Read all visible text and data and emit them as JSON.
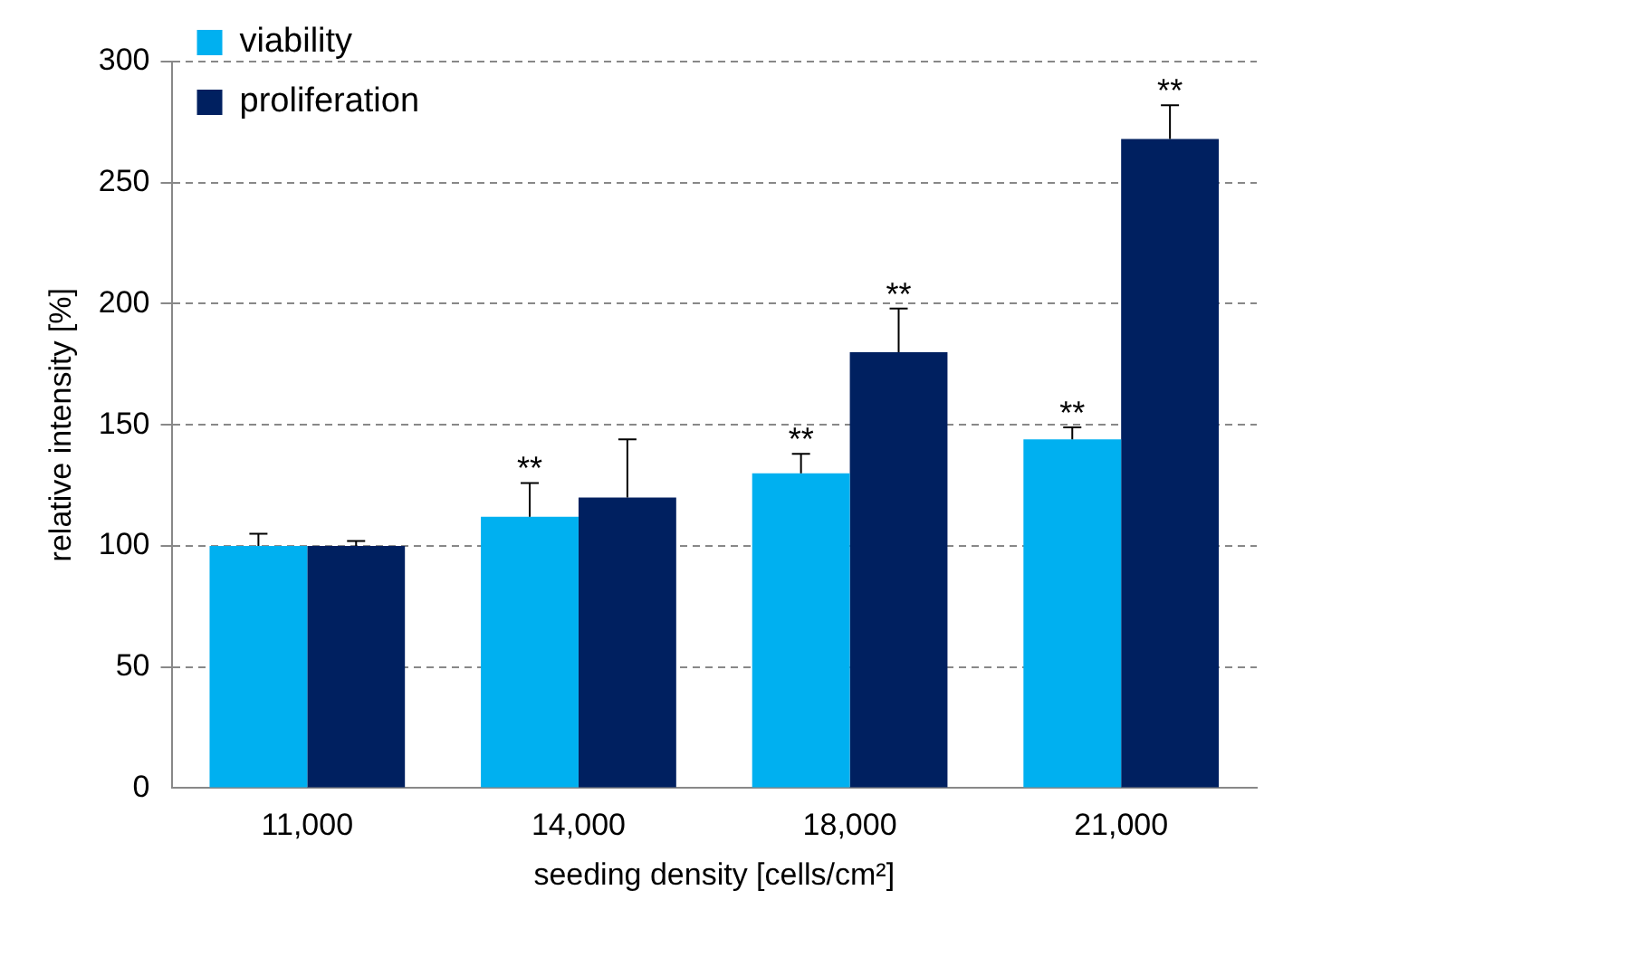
{
  "chart_data": {
    "type": "bar",
    "xlabel": "seeding density [cells/cm²]",
    "ylabel": "relative intensity [%]",
    "categories": [
      "11,000",
      "14,000",
      "18,000",
      "21,000"
    ],
    "series": [
      {
        "name": "viability",
        "color": "#00b0f0",
        "values": [
          100,
          112,
          130,
          144
        ],
        "errors": [
          5,
          14,
          8,
          5
        ]
      },
      {
        "name": "proliferation",
        "color": "#002060",
        "values": [
          100,
          120,
          180,
          268
        ],
        "errors": [
          2,
          24,
          18,
          14
        ]
      }
    ],
    "ylim": [
      0,
      300
    ],
    "yticks": [
      0,
      50,
      100,
      150,
      200,
      250,
      300
    ],
    "grid": "y",
    "legend": "top left",
    "annotations": [
      {
        "text": "**",
        "x": "14,000",
        "y": 112
      },
      {
        "text": "**",
        "x": "18,000",
        "y": 130
      },
      {
        "text": "**",
        "x": "18,000",
        "y": 180
      },
      {
        "text": "**",
        "x": "21,000",
        "y": 144
      },
      {
        "text": "**",
        "x": "21,000",
        "y": 268
      }
    ]
  }
}
